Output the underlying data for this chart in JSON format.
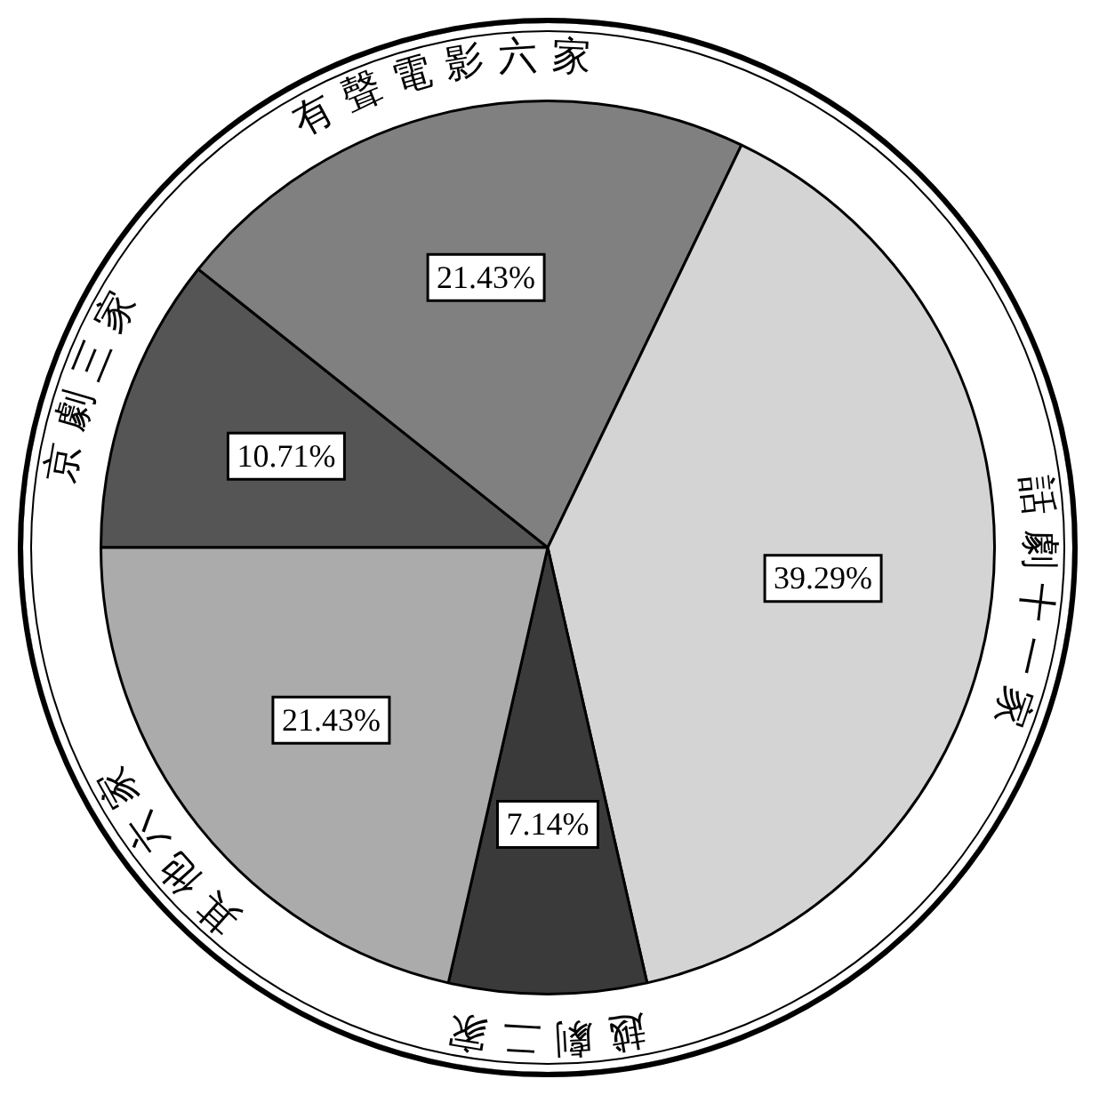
{
  "chart_data": {
    "type": "pie",
    "categories": [
      "京劇三家",
      "有聲電影六家",
      "話劇十一家",
      "越劇二家",
      "其他六家"
    ],
    "values": [
      10.71,
      21.43,
      39.29,
      7.14,
      21.43
    ],
    "value_labels": [
      "10.71%",
      "21.43%",
      "39.29%",
      "7.14%",
      "21.43%"
    ],
    "colors": [
      "#555555",
      "#808080",
      "#d4d4d4",
      "#3a3a3a",
      "#ababab"
    ],
    "legend": false
  }
}
